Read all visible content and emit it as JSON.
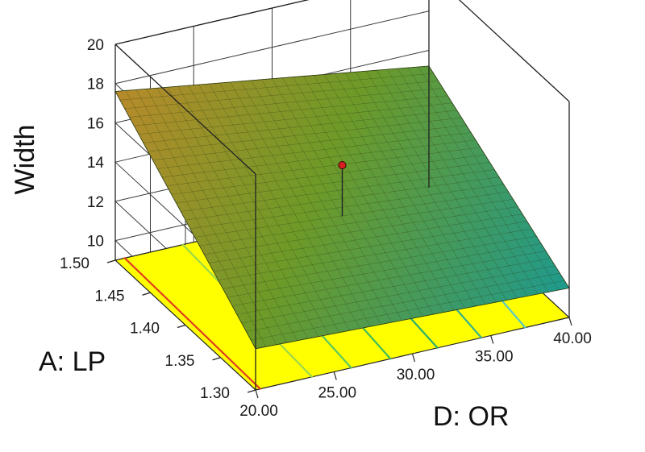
{
  "chart_data": {
    "type": "surface3d",
    "title": "",
    "x_axis": {
      "label": "D: OR",
      "range": [
        20,
        40
      ],
      "ticks": [
        "20.00",
        "25.00",
        "30.00",
        "35.00",
        "40.00"
      ]
    },
    "y_axis": {
      "label": "A: LP",
      "range": [
        1.3,
        1.5
      ],
      "ticks": [
        "1.30",
        "1.35",
        "1.40",
        "1.45",
        "1.50"
      ]
    },
    "z_axis": {
      "label": "Width",
      "range": [
        9,
        20
      ],
      "ticks": [
        "10",
        "12",
        "14",
        "16",
        "18",
        "20"
      ]
    },
    "surface": {
      "corners": [
        {
          "x": 20,
          "y": 1.5,
          "z": 17.6
        },
        {
          "x": 40,
          "y": 1.5,
          "z": 15.2
        },
        {
          "x": 40,
          "y": 1.3,
          "z": 10.5
        },
        {
          "x": 20,
          "y": 1.3,
          "z": 11.1
        }
      ],
      "mesh_divisions": 30
    },
    "design_point": {
      "x": 30,
      "y": 1.4,
      "z": 15.3,
      "color": "#d82020"
    },
    "contours": [
      {
        "x_at_front": 20.3,
        "x_at_back": 20.6,
        "color": "#e04020"
      },
      {
        "x_at_front": 23.6,
        "x_at_back": 24.3,
        "color": "#9bd84a"
      },
      {
        "x_at_front": 26.1,
        "x_at_back": 27.3,
        "color": "#5cc85a"
      },
      {
        "x_at_front": 28.6,
        "x_at_back": 29.9,
        "color": "#3cba5c"
      },
      {
        "x_at_front": 31.6,
        "x_at_back": 32.8,
        "color": "#2fae6a"
      },
      {
        "x_at_front": 34.4,
        "x_at_back": 35.8,
        "color": "#33b08a"
      },
      {
        "x_at_front": 37.2,
        "x_at_back": 38.7,
        "color": "#5ac8c8"
      }
    ],
    "colors": {
      "floor": "#ffff00",
      "surface_high": "#b88a2a",
      "surface_mid": "#6e9a28",
      "surface_low": "#1e9a8e"
    }
  }
}
